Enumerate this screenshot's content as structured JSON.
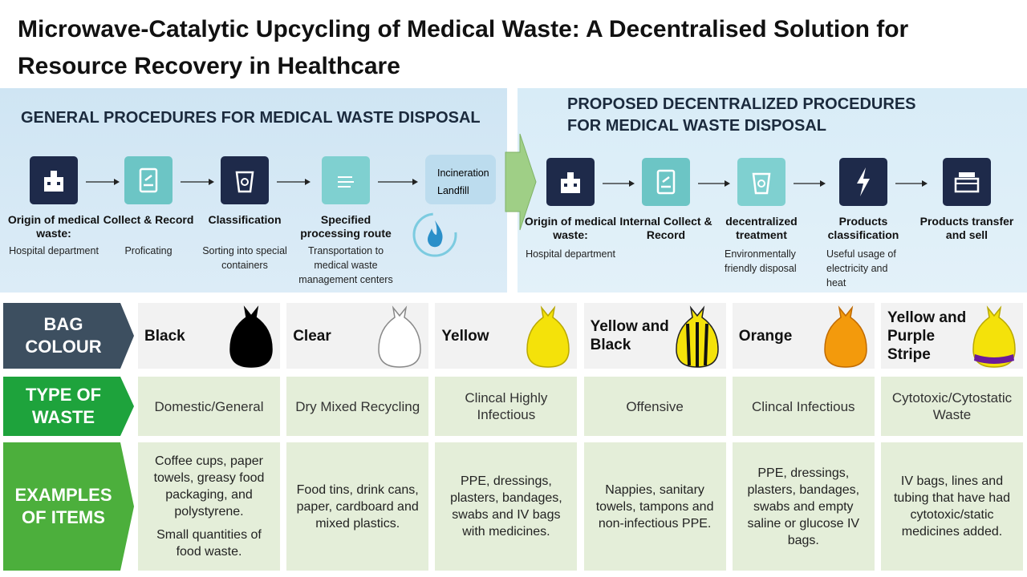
{
  "title": "Microwave-Catalytic Upcycling of Medical Waste: A Decentralised Solution for Resource Recovery in Healthcare",
  "general": {
    "heading": "GENERAL PROCEDURES FOR MEDICAL WASTE DISPOSAL",
    "steps": [
      {
        "label": "Origin of medical waste:",
        "detail": "Hospital department"
      },
      {
        "label": "Collect & Record",
        "detail": "Proficating"
      },
      {
        "label": "Classification",
        "detail": "Sorting into special containers"
      },
      {
        "label": "Specified processing route",
        "detail": "Transportation to medical waste management centers"
      }
    ],
    "end": [
      "Incineration",
      "Landfill"
    ]
  },
  "proposed": {
    "heading": "PROPOSED DECENTRALIZED PROCEDURES FOR MEDICAL WASTE DISPOSAL",
    "steps": [
      {
        "label": "Origin of medical waste:",
        "detail": "Hospital department"
      },
      {
        "label": "Internal Collect & Record",
        "detail": null
      },
      {
        "label": "decentralized treatment",
        "detail": "Environmentally friendly disposal"
      },
      {
        "label": "Products classification",
        "detail": "Useful usage of electricity and heat"
      },
      {
        "label": "Products transfer and sell",
        "detail": null
      }
    ]
  },
  "table": {
    "row_headers": [
      "BAG COLOUR",
      "TYPE OF WASTE",
      "EXAMPLES OF ITEMS"
    ],
    "columns": [
      {
        "bag": "Black",
        "type": "Domestic/General",
        "examples": [
          "Coffee cups, paper towels, greasy food packaging, and polystyrene.",
          "Small quantities of food waste."
        ]
      },
      {
        "bag": "Clear",
        "type": "Dry Mixed Recycling",
        "examples": [
          "Food tins, drink cans, paper, cardboard and mixed plastics."
        ]
      },
      {
        "bag": "Yellow",
        "type": "Clincal Highly Infectious",
        "examples": [
          "PPE, dressings, plasters, bandages, swabs and IV bags with medicines."
        ]
      },
      {
        "bag": "Yellow and Black",
        "type": "Offensive",
        "examples": [
          "Nappies, sanitary towels, tampons and non-infectious PPE."
        ]
      },
      {
        "bag": "Orange",
        "type": "Clincal Infectious",
        "examples": [
          "PPE, dressings, plasters, bandages, swabs and empty saline or glucose IV bags."
        ]
      },
      {
        "bag": "Yellow and Purple Stripe",
        "type": "Cytotoxic/Cytostatic Waste",
        "examples": [
          "IV bags, lines and tubing that have had cytotoxic/static medicines added."
        ]
      }
    ]
  }
}
